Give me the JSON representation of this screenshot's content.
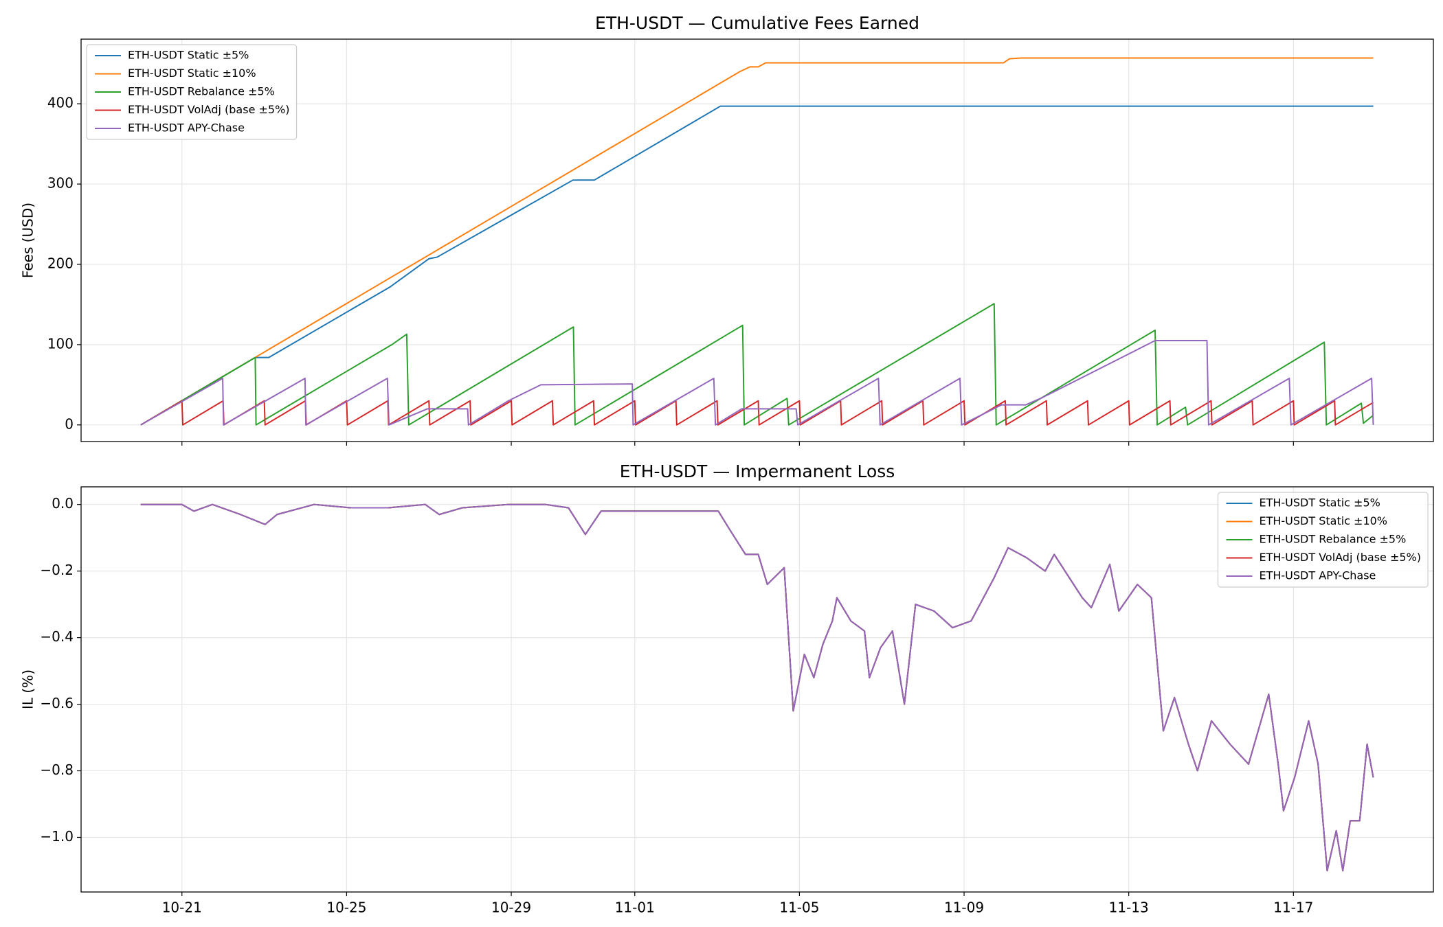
{
  "chart_data": [
    {
      "type": "line",
      "title": "ETH-USDT — Cumulative Fees Earned",
      "ylabel": "Fees (USD)",
      "xlim": [
        18.55,
        51.4
      ],
      "ylim": [
        -20.7,
        480.5
      ],
      "yticks": [
        0,
        100,
        200,
        300,
        400
      ],
      "grid": true,
      "legend": "upper left",
      "series": [
        {
          "name": "ETH-USDT Static ±5%",
          "color": "#1f77b4",
          "x": [
            20,
            22.78,
            23.11,
            26.06,
            27.0,
            27.2,
            30.5,
            31.02,
            34.08,
            49.94
          ],
          "values": [
            0,
            84,
            84,
            172,
            207,
            209,
            305,
            305,
            397,
            397
          ]
        },
        {
          "name": "ETH-USDT Static ±10%",
          "color": "#ff7f0e",
          "x": [
            20,
            34.55,
            34.8,
            35.0,
            35.18,
            40.96,
            41.1,
            41.38,
            49.94
          ],
          "values": [
            0,
            440,
            446,
            446,
            451,
            451,
            456,
            457,
            457
          ]
        },
        {
          "name": "ETH-USDT Rebalance ±5%",
          "color": "#2ca02c",
          "x": [
            20,
            22.78,
            22.8,
            26.1,
            26.46,
            26.51,
            30.51,
            30.55,
            34.62,
            34.66,
            35.7,
            35.74,
            40.73,
            40.78,
            44.64,
            44.69,
            45.38,
            45.43,
            48.75,
            48.8,
            49.65,
            49.7,
            49.94
          ],
          "values": [
            0,
            84,
            0,
            100,
            113,
            0,
            122,
            0,
            124,
            0,
            33,
            0,
            151,
            0,
            118,
            0,
            22,
            0,
            103,
            0,
            27,
            2,
            12
          ]
        },
        {
          "name": "ETH-USDT VolAdj (base ±5%)",
          "color": "#d62728",
          "x": [
            20,
            21,
            21.02,
            22,
            22.02,
            23,
            23.02,
            24,
            24.02,
            25,
            25.02,
            26,
            26.02,
            27,
            27.02,
            28,
            28.02,
            29,
            29.02,
            30,
            30.02,
            31,
            31.02,
            32,
            32.02,
            33,
            33.02,
            34,
            34.02,
            35,
            35.02,
            36,
            36.02,
            37,
            37.02,
            38,
            38.02,
            39,
            39.02,
            40,
            40.02,
            41,
            41.02,
            42,
            42.02,
            43,
            43.02,
            44,
            44.02,
            45,
            45.02,
            46,
            46.02,
            47,
            47.02,
            48,
            48.02,
            49,
            49.02,
            49.94
          ],
          "values": [
            0,
            30,
            0,
            30,
            0,
            30,
            0,
            30,
            0,
            30,
            0,
            30,
            0,
            30,
            0,
            30,
            0,
            30,
            0,
            30,
            0,
            30,
            0,
            30,
            0,
            30,
            0,
            30,
            0,
            30,
            0,
            30,
            0,
            30,
            0,
            30,
            0,
            30,
            0,
            30,
            0,
            30,
            0,
            30,
            0,
            30,
            0,
            30,
            0,
            30,
            0,
            30,
            0,
            30,
            0,
            30,
            0,
            30,
            0,
            28
          ]
        },
        {
          "name": "ETH-USDT APY-Chase",
          "color": "#9467bd",
          "x": [
            20,
            21.99,
            22.01,
            23.99,
            24.01,
            25.99,
            26.03,
            26.96,
            27.94,
            27.96,
            28.93,
            29.72,
            31.94,
            31.96,
            33.92,
            33.96,
            34.6,
            35.92,
            35.96,
            37.92,
            37.96,
            39.9,
            39.94,
            40.91,
            41.5,
            41.9,
            44.64,
            45.9,
            45.94,
            47.9,
            47.94,
            49.9,
            49.94
          ],
          "values": [
            0,
            58,
            0,
            58,
            0,
            58,
            0,
            20,
            20,
            0,
            30,
            50,
            51,
            0,
            58,
            0,
            20,
            20,
            0,
            58,
            0,
            58,
            0,
            25,
            25,
            34,
            105,
            105,
            0,
            58,
            0,
            58,
            0
          ]
        }
      ]
    },
    {
      "type": "line",
      "title": "ETH-USDT — Impermanent Loss",
      "ylabel": "IL (%)",
      "xlim": [
        18.55,
        51.4
      ],
      "ylim": [
        -1.164,
        0.053
      ],
      "xticks": [
        {
          "value": 21,
          "label": "10-21"
        },
        {
          "value": 25,
          "label": "10-25"
        },
        {
          "value": 29,
          "label": "10-29"
        },
        {
          "value": 32,
          "label": "11-01"
        },
        {
          "value": 36,
          "label": "11-05"
        },
        {
          "value": 40,
          "label": "11-09"
        },
        {
          "value": 44,
          "label": "11-13"
        },
        {
          "value": 48,
          "label": "11-17"
        }
      ],
      "yticks": [
        {
          "value": 0,
          "label": "0.0"
        },
        {
          "value": -0.2,
          "label": "−0.2"
        },
        {
          "value": -0.4,
          "label": "−0.4"
        },
        {
          "value": -0.6,
          "label": "−0.6"
        },
        {
          "value": -0.8,
          "label": "−0.8"
        },
        {
          "value": -1.0,
          "label": "−1.0"
        }
      ],
      "grid": true,
      "legend": "upper right",
      "x": [
        20.0,
        21.0,
        21.29,
        21.74,
        22.42,
        23.02,
        23.31,
        24.21,
        25.11,
        26.01,
        26.91,
        27.25,
        27.81,
        28.93,
        29.83,
        30.39,
        30.8,
        31.18,
        32.3,
        33.2,
        34.03,
        34.33,
        34.69,
        35.0,
        35.22,
        35.63,
        35.85,
        36.12,
        36.35,
        36.57,
        36.8,
        36.91,
        37.25,
        37.58,
        37.7,
        37.97,
        38.26,
        38.55,
        38.82,
        39.27,
        39.72,
        40.17,
        40.73,
        41.07,
        41.52,
        41.97,
        42.19,
        42.87,
        43.09,
        43.54,
        43.76,
        44.21,
        44.55,
        44.84,
        45.11,
        45.45,
        45.67,
        46.01,
        46.46,
        46.91,
        47.4,
        47.63,
        47.76,
        48.03,
        48.37,
        48.6,
        48.82,
        49.04,
        49.2,
        49.38,
        49.61,
        49.79,
        49.94
      ],
      "series": [
        {
          "name": "ETH-USDT Static ±5%",
          "color": "#1f77b4",
          "values": [
            0,
            0,
            -0.02,
            0,
            -0.03,
            -0.06,
            -0.03,
            0,
            -0.01,
            -0.01,
            0,
            -0.03,
            -0.01,
            0,
            0,
            -0.01,
            -0.09,
            -0.02,
            -0.02,
            -0.02,
            -0.02,
            -0.08,
            -0.15,
            -0.15,
            -0.24,
            -0.19,
            -0.62,
            -0.45,
            -0.52,
            -0.42,
            -0.35,
            -0.28,
            -0.35,
            -0.38,
            -0.52,
            -0.43,
            -0.38,
            -0.6,
            -0.3,
            -0.32,
            -0.37,
            -0.35,
            -0.22,
            -0.13,
            -0.16,
            -0.2,
            -0.15,
            -0.28,
            -0.31,
            -0.18,
            -0.32,
            -0.24,
            -0.28,
            -0.68,
            -0.58,
            -0.72,
            -0.8,
            -0.65,
            -0.72,
            -0.78,
            -0.57,
            -0.78,
            -0.92,
            -0.82,
            -0.65,
            -0.78,
            -1.1,
            -0.98,
            -1.1,
            -0.95,
            -0.95,
            -0.72,
            -0.82
          ]
        },
        {
          "name": "ETH-USDT Static ±10%",
          "color": "#ff7f0e",
          "values": [
            0,
            0,
            -0.02,
            0,
            -0.03,
            -0.06,
            -0.03,
            0,
            -0.01,
            -0.01,
            0,
            -0.03,
            -0.01,
            0,
            0,
            -0.01,
            -0.09,
            -0.02,
            -0.02,
            -0.02,
            -0.02,
            -0.08,
            -0.15,
            -0.15,
            -0.24,
            -0.19,
            -0.62,
            -0.45,
            -0.52,
            -0.42,
            -0.35,
            -0.28,
            -0.35,
            -0.38,
            -0.52,
            -0.43,
            -0.38,
            -0.6,
            -0.3,
            -0.32,
            -0.37,
            -0.35,
            -0.22,
            -0.13,
            -0.16,
            -0.2,
            -0.15,
            -0.28,
            -0.31,
            -0.18,
            -0.32,
            -0.24,
            -0.28,
            -0.68,
            -0.58,
            -0.72,
            -0.8,
            -0.65,
            -0.72,
            -0.78,
            -0.57,
            -0.78,
            -0.92,
            -0.82,
            -0.65,
            -0.78,
            -1.1,
            -0.98,
            -1.1,
            -0.95,
            -0.95,
            -0.72,
            -0.82
          ]
        },
        {
          "name": "ETH-USDT Rebalance ±5%",
          "color": "#2ca02c",
          "values": [
            0,
            0,
            -0.02,
            0,
            -0.03,
            -0.06,
            -0.03,
            0,
            -0.01,
            -0.01,
            0,
            -0.03,
            -0.01,
            0,
            0,
            -0.01,
            -0.09,
            -0.02,
            -0.02,
            -0.02,
            -0.02,
            -0.08,
            -0.15,
            -0.15,
            -0.24,
            -0.19,
            -0.62,
            -0.45,
            -0.52,
            -0.42,
            -0.35,
            -0.28,
            -0.35,
            -0.38,
            -0.52,
            -0.43,
            -0.38,
            -0.6,
            -0.3,
            -0.32,
            -0.37,
            -0.35,
            -0.22,
            -0.13,
            -0.16,
            -0.2,
            -0.15,
            -0.28,
            -0.31,
            -0.18,
            -0.32,
            -0.24,
            -0.28,
            -0.68,
            -0.58,
            -0.72,
            -0.8,
            -0.65,
            -0.72,
            -0.78,
            -0.57,
            -0.78,
            -0.92,
            -0.82,
            -0.65,
            -0.78,
            -1.1,
            -0.98,
            -1.1,
            -0.95,
            -0.95,
            -0.72,
            -0.82
          ]
        },
        {
          "name": "ETH-USDT VolAdj (base ±5%)",
          "color": "#d62728",
          "values": [
            0,
            0,
            -0.02,
            0,
            -0.03,
            -0.06,
            -0.03,
            0,
            -0.01,
            -0.01,
            0,
            -0.03,
            -0.01,
            0,
            0,
            -0.01,
            -0.09,
            -0.02,
            -0.02,
            -0.02,
            -0.02,
            -0.08,
            -0.15,
            -0.15,
            -0.24,
            -0.19,
            -0.62,
            -0.45,
            -0.52,
            -0.42,
            -0.35,
            -0.28,
            -0.35,
            -0.38,
            -0.52,
            -0.43,
            -0.38,
            -0.6,
            -0.3,
            -0.32,
            -0.37,
            -0.35,
            -0.22,
            -0.13,
            -0.16,
            -0.2,
            -0.15,
            -0.28,
            -0.31,
            -0.18,
            -0.32,
            -0.24,
            -0.28,
            -0.68,
            -0.58,
            -0.72,
            -0.8,
            -0.65,
            -0.72,
            -0.78,
            -0.57,
            -0.78,
            -0.92,
            -0.82,
            -0.65,
            -0.78,
            -1.1,
            -0.98,
            -1.1,
            -0.95,
            -0.95,
            -0.72,
            -0.82
          ]
        },
        {
          "name": "ETH-USDT APY-Chase",
          "color": "#9467bd",
          "values": [
            0,
            0,
            -0.02,
            0,
            -0.03,
            -0.06,
            -0.03,
            0,
            -0.01,
            -0.01,
            0,
            -0.03,
            -0.01,
            0,
            0,
            -0.01,
            -0.09,
            -0.02,
            -0.02,
            -0.02,
            -0.02,
            -0.08,
            -0.15,
            -0.15,
            -0.24,
            -0.19,
            -0.62,
            -0.45,
            -0.52,
            -0.42,
            -0.35,
            -0.28,
            -0.35,
            -0.38,
            -0.52,
            -0.43,
            -0.38,
            -0.6,
            -0.3,
            -0.32,
            -0.37,
            -0.35,
            -0.22,
            -0.13,
            -0.16,
            -0.2,
            -0.15,
            -0.28,
            -0.31,
            -0.18,
            -0.32,
            -0.24,
            -0.28,
            -0.68,
            -0.58,
            -0.72,
            -0.8,
            -0.65,
            -0.72,
            -0.78,
            -0.57,
            -0.78,
            -0.92,
            -0.82,
            -0.65,
            -0.78,
            -1.1,
            -0.98,
            -1.1,
            -0.95,
            -0.95,
            -0.72,
            -0.82
          ]
        }
      ]
    }
  ]
}
